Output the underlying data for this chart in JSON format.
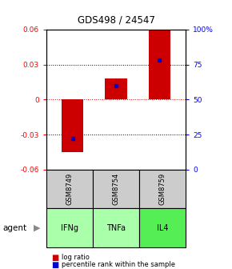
{
  "title": "GDS498 / 24547",
  "samples": [
    "GSM8749",
    "GSM8754",
    "GSM8759"
  ],
  "agents": [
    "IFNg",
    "TNFa",
    "IL4"
  ],
  "log_ratios": [
    -0.045,
    0.018,
    0.06
  ],
  "percentile_ranks": [
    22,
    60,
    78
  ],
  "ylim_left": [
    -0.06,
    0.06
  ],
  "ylim_right": [
    0,
    100
  ],
  "yticks_left": [
    -0.06,
    -0.03,
    0,
    0.03,
    0.06
  ],
  "yticks_right": [
    0,
    25,
    50,
    75,
    100
  ],
  "bar_color": "#cc0000",
  "percentile_color": "#0000cc",
  "agent_colors": [
    "#aaffaa",
    "#aaffaa",
    "#55ee55"
  ],
  "sample_bg_color": "#cccccc",
  "zero_line_color": "#cc0000",
  "bar_width": 0.5,
  "agent_label": "agent"
}
